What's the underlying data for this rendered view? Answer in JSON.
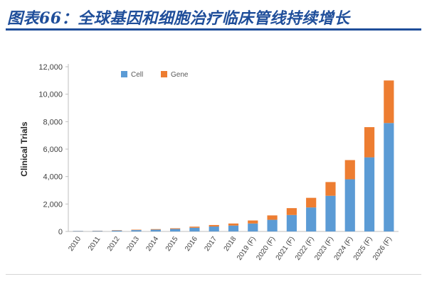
{
  "figure": {
    "title": "图表66：全球基因和细胞治疗临床管线持续增长"
  },
  "colors": {
    "title": "#1f4e9a",
    "cell": "#5b9bd5",
    "gene": "#ed7d31"
  },
  "chart_data": {
    "type": "bar",
    "stacked": true,
    "title": "",
    "xlabel": "",
    "ylabel": "Clinical Trials",
    "ylim": [
      0,
      12000
    ],
    "yticks": [
      "0",
      "2,000",
      "4,000",
      "6,000",
      "8,000",
      "10,000",
      "12,000"
    ],
    "legend_position": "top-left",
    "grid": false,
    "categories": [
      "2010",
      "2011",
      "2012",
      "2013",
      "2014",
      "2015",
      "2016",
      "2017",
      "2018",
      "2019 (F)",
      "2020 (F)",
      "2021 (F)",
      "2022 (F)",
      "2023 (F)",
      "2024 (F)",
      "2025 (F)",
      "2026 (F)"
    ],
    "series": [
      {
        "name": "Cell",
        "color": "#5b9bd5",
        "values": [
          30,
          40,
          70,
          100,
          130,
          180,
          270,
          360,
          430,
          580,
          850,
          1200,
          1750,
          2600,
          3800,
          5400,
          7900
        ]
      },
      {
        "name": "Gene",
        "color": "#ed7d31",
        "values": [
          10,
          15,
          25,
          30,
          40,
          50,
          80,
          110,
          150,
          220,
          320,
          500,
          700,
          1000,
          1400,
          2200,
          3100
        ]
      }
    ]
  }
}
